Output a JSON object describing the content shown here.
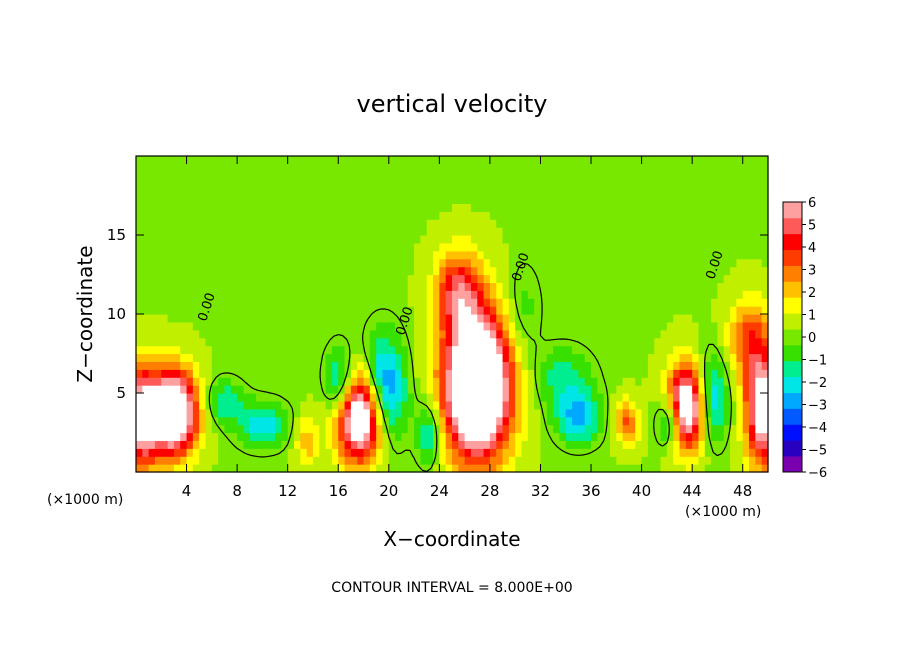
{
  "chart_data": {
    "type": "heatmap",
    "title": "vertical velocity",
    "xlabel": "X−coordinate",
    "ylabel": "Z−coordinate",
    "x_unit_left": "(×1000 m)",
    "x_unit_right": "(×1000 m)",
    "xlim": [
      0,
      50
    ],
    "ylim": [
      0,
      20
    ],
    "x_ticks": [
      {
        "v": 4,
        "label": "4"
      },
      {
        "v": 8,
        "label": "8"
      },
      {
        "v": 12,
        "label": "12"
      },
      {
        "v": 16,
        "label": "16"
      },
      {
        "v": 20,
        "label": "20"
      },
      {
        "v": 24,
        "label": "24"
      },
      {
        "v": 28,
        "label": "28"
      },
      {
        "v": 32,
        "label": "32"
      },
      {
        "v": 36,
        "label": "36"
      },
      {
        "v": 40,
        "label": "40"
      },
      {
        "v": 44,
        "label": "44"
      },
      {
        "v": 48,
        "label": "48"
      }
    ],
    "y_ticks": [
      {
        "v": 5,
        "label": "5"
      },
      {
        "v": 10,
        "label": "10"
      },
      {
        "v": 15,
        "label": "15"
      }
    ],
    "colorbar": {
      "min": -6,
      "max": 6,
      "labels": [
        "6",
        "5",
        "4",
        "3",
        "2",
        "1",
        "0",
        "−1",
        "−2",
        "−3",
        "−4",
        "−5",
        "−6"
      ],
      "colors": [
        "#7b00b0",
        "#2a00c0",
        "#0010ff",
        "#005aff",
        "#00a8ff",
        "#00e6e6",
        "#00ee90",
        "#38e000",
        "#78e800",
        "#c0f000",
        "#ffff00",
        "#ffc000",
        "#ff8000",
        "#ff3c00",
        "#ff0000",
        "#ff5a5a",
        "#ffa0a0"
      ]
    },
    "features": [
      {
        "kind": "updraft",
        "x": 3.0,
        "z": 3.8,
        "peak": 9,
        "sx": 1.8,
        "sz": 2.6
      },
      {
        "kind": "updraft",
        "x": 17.8,
        "z": 3.6,
        "peak": 9,
        "sx": 1.9,
        "sz": 2.8
      },
      {
        "kind": "updraft",
        "x": 27.0,
        "z": 5.5,
        "peak": 11,
        "sx": 2.6,
        "sz": 4.5
      },
      {
        "kind": "updraft",
        "x": 43.8,
        "z": 4.2,
        "peak": 9,
        "sx": 1.6,
        "sz": 2.6
      },
      {
        "kind": "updraft",
        "x": 49.6,
        "z": 4.0,
        "peak": 7,
        "sx": 1.4,
        "sz": 3.5
      },
      {
        "kind": "updraft",
        "x": 0.4,
        "z": 3.5,
        "peak": 7,
        "sx": 1.4,
        "sz": 3.0
      },
      {
        "kind": "updraft",
        "x": 25.5,
        "z": 11.5,
        "peak": 4,
        "sx": 1.8,
        "sz": 2.5
      },
      {
        "kind": "updraft",
        "x": 48.5,
        "z": 8.5,
        "peak": 3,
        "sx": 1.6,
        "sz": 2.5
      },
      {
        "kind": "updraft",
        "x": 38.8,
        "z": 3.2,
        "peak": 3,
        "sx": 1.0,
        "sz": 1.4
      },
      {
        "kind": "updraft",
        "x": 13.5,
        "z": 2.0,
        "peak": 2,
        "sx": 0.9,
        "sz": 1.5
      },
      {
        "kind": "downdraft",
        "x": 19.5,
        "z": 5.0,
        "peak": -5,
        "sx": 1.7,
        "sz": 3.2
      },
      {
        "kind": "downdraft",
        "x": 16.2,
        "z": 5.5,
        "peak": -3.5,
        "sx": 1.2,
        "sz": 2.2
      },
      {
        "kind": "downdraft",
        "x": 45.2,
        "z": 4.5,
        "peak": -5,
        "sx": 1.4,
        "sz": 2.6
      },
      {
        "kind": "downdraft",
        "x": 42.2,
        "z": 3.2,
        "peak": -3,
        "sx": 1.0,
        "sz": 1.6
      },
      {
        "kind": "downdraft",
        "x": 35.0,
        "z": 3.5,
        "peak": -3,
        "sx": 1.8,
        "sz": 1.6
      },
      {
        "kind": "downdraft",
        "x": 10.0,
        "z": 3.0,
        "peak": -2.5,
        "sx": 2.0,
        "sz": 1.4
      },
      {
        "kind": "downdraft",
        "x": 7.0,
        "z": 4.5,
        "peak": -2,
        "sx": 1.5,
        "sz": 1.3
      },
      {
        "kind": "downdraft",
        "x": 23.2,
        "z": 2.5,
        "peak": -2.5,
        "sx": 1.0,
        "sz": 2.0
      },
      {
        "kind": "downdraft",
        "x": 33.8,
        "z": 6.0,
        "peak": -1.8,
        "sx": 2.2,
        "sz": 1.8
      },
      {
        "kind": "downdraft",
        "x": 30.5,
        "z": 10.0,
        "peak": -1.2,
        "sx": 1.5,
        "sz": 3.0
      }
    ],
    "zero_contour_labels": [
      "0.00",
      "0.00",
      "0.00",
      "0.00"
    ],
    "annotation": "CONTOUR INTERVAL = 8.000E+00"
  }
}
